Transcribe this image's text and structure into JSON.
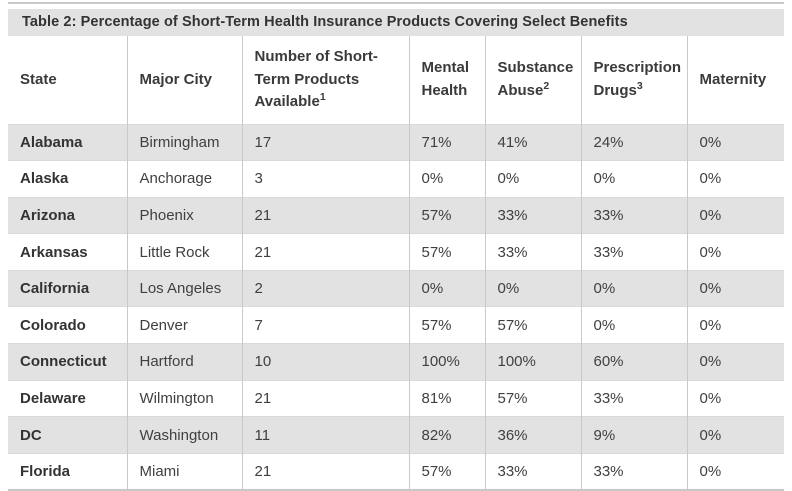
{
  "chart_data": {
    "type": "table",
    "title": "Table 2: Percentage of Short-Term Health Insurance Products Covering Select Benefits",
    "columns": [
      {
        "key": "state",
        "label": "State"
      },
      {
        "key": "major_city",
        "label": "Major City"
      },
      {
        "key": "products_available",
        "label": "Number of Short-Term Products Available",
        "sup": "1"
      },
      {
        "key": "mental_health",
        "label": "Mental Health"
      },
      {
        "key": "substance_abuse",
        "label": "Substance Abuse",
        "sup": "2"
      },
      {
        "key": "prescription_drugs",
        "label": "Prescription Drugs",
        "sup": "3"
      },
      {
        "key": "maternity",
        "label": "Maternity"
      }
    ],
    "rows": [
      {
        "state": "Alabama",
        "major_city": "Birmingham",
        "products_available": "17",
        "mental_health": "71%",
        "substance_abuse": "41%",
        "prescription_drugs": "24%",
        "maternity": "0%"
      },
      {
        "state": "Alaska",
        "major_city": "Anchorage",
        "products_available": "3",
        "mental_health": "0%",
        "substance_abuse": "0%",
        "prescription_drugs": "0%",
        "maternity": "0%"
      },
      {
        "state": "Arizona",
        "major_city": "Phoenix",
        "products_available": "21",
        "mental_health": "57%",
        "substance_abuse": "33%",
        "prescription_drugs": "33%",
        "maternity": "0%"
      },
      {
        "state": "Arkansas",
        "major_city": "Little Rock",
        "products_available": "21",
        "mental_health": "57%",
        "substance_abuse": "33%",
        "prescription_drugs": "33%",
        "maternity": "0%"
      },
      {
        "state": "California",
        "major_city": "Los Angeles",
        "products_available": "2",
        "mental_health": "0%",
        "substance_abuse": "0%",
        "prescription_drugs": "0%",
        "maternity": "0%"
      },
      {
        "state": "Colorado",
        "major_city": "Denver",
        "products_available": "7",
        "mental_health": "57%",
        "substance_abuse": "57%",
        "prescription_drugs": "0%",
        "maternity": "0%"
      },
      {
        "state": "Connecticut",
        "major_city": "Hartford",
        "products_available": "10",
        "mental_health": "100%",
        "substance_abuse": "100%",
        "prescription_drugs": "60%",
        "maternity": "0%"
      },
      {
        "state": "Delaware",
        "major_city": "Wilmington",
        "products_available": "21",
        "mental_health": "81%",
        "substance_abuse": "57%",
        "prescription_drugs": "33%",
        "maternity": "0%"
      },
      {
        "state": "DC",
        "major_city": "Washington",
        "products_available": "11",
        "mental_health": "82%",
        "substance_abuse": "36%",
        "prescription_drugs": "9%",
        "maternity": "0%"
      },
      {
        "state": "Florida",
        "major_city": "Miami",
        "products_available": "21",
        "mental_health": "57%",
        "substance_abuse": "33%",
        "prescription_drugs": "33%",
        "maternity": "0%"
      }
    ],
    "colors": {
      "stripe_fill": "#e2e2e2",
      "title_bar_fill": "#e2e2e2",
      "gridline": "#c9c9c9",
      "text": "#3a3a3a"
    },
    "layout_hints": {
      "striped_rows": "odd rows shaded",
      "grid": "vertical gridlines between columns, thin rules above/below table"
    }
  }
}
